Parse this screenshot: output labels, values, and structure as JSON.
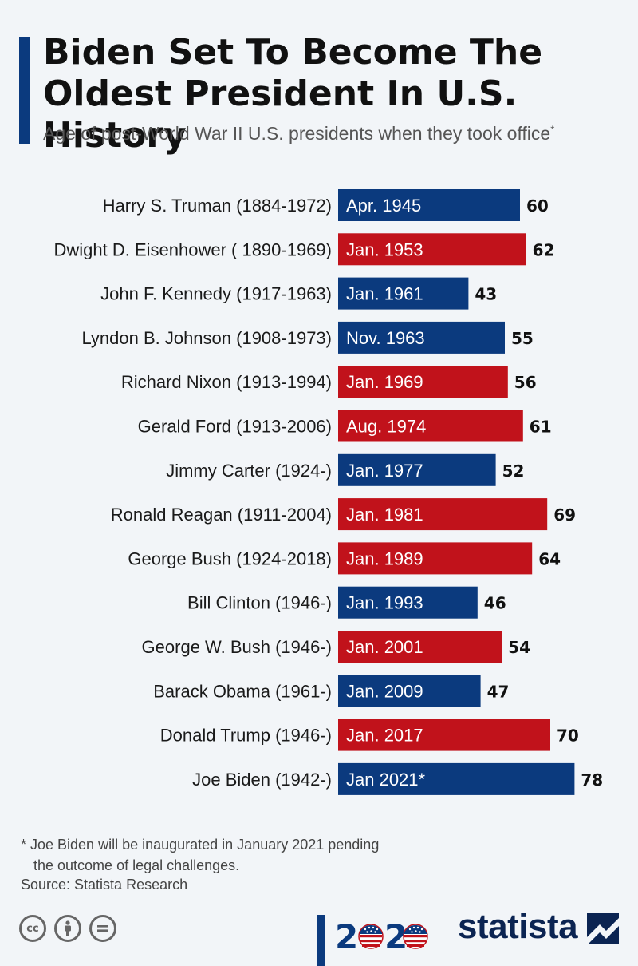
{
  "header": {
    "title_line1": "Biden Set To Become The",
    "title_line2": "Oldest President In U.S. History",
    "subtitle": "Age of post-World War II U.S. presidents when they took office",
    "subtitle_marker": "*"
  },
  "colors": {
    "republican": "#c1121b",
    "democrat": "#0b3a7e",
    "accent": "#0b3a7e"
  },
  "chart_data": {
    "type": "bar",
    "orientation": "horizontal",
    "title": "Biden Set To Become The Oldest President In U.S. History",
    "xlabel": "",
    "ylabel": "",
    "xlim": [
      0,
      80
    ],
    "grid": false,
    "categories": [
      "Harry S. Truman (1884-1972)",
      "Dwight D. Eisenhower ( 1890-1969)",
      "John F. Kennedy (1917-1963)",
      "Lyndon B. Johnson (1908-1973)",
      "Richard Nixon (1913-1994)",
      "Gerald Ford (1913-2006)",
      "Jimmy Carter (1924-)",
      "Ronald Reagan (1911-2004)",
      "George Bush (1924-2018)",
      "Bill Clinton (1946-)",
      "George W. Bush (1946-)",
      "Barack Obama (1961-)",
      "Donald Trump (1946-)",
      "Joe Biden (1942-)"
    ],
    "values": [
      60,
      62,
      43,
      55,
      56,
      61,
      52,
      69,
      64,
      46,
      54,
      47,
      70,
      78
    ],
    "bar_labels": [
      "Apr. 1945",
      "Jan. 1953",
      "Jan. 1961",
      "Nov. 1963",
      "Jan. 1969",
      "Aug. 1974",
      "Jan. 1977",
      "Jan. 1981",
      "Jan. 1989",
      "Jan. 1993",
      "Jan. 2001",
      "Jan. 2009",
      "Jan. 2017",
      "Jan 2021*"
    ],
    "party": [
      "D",
      "R",
      "D",
      "D",
      "R",
      "R",
      "D",
      "R",
      "R",
      "D",
      "R",
      "D",
      "R",
      "D"
    ]
  },
  "footer": {
    "footnote_line1": "* Joe Biden will be inaugurated in January 2021 pending",
    "footnote_line2": "the outcome of legal challenges.",
    "source": "Source: Statista Research",
    "logo_2020": "2020",
    "brand": "statista",
    "license_icons": [
      "cc-icon",
      "attribution-icon",
      "no-derivatives-icon"
    ]
  }
}
